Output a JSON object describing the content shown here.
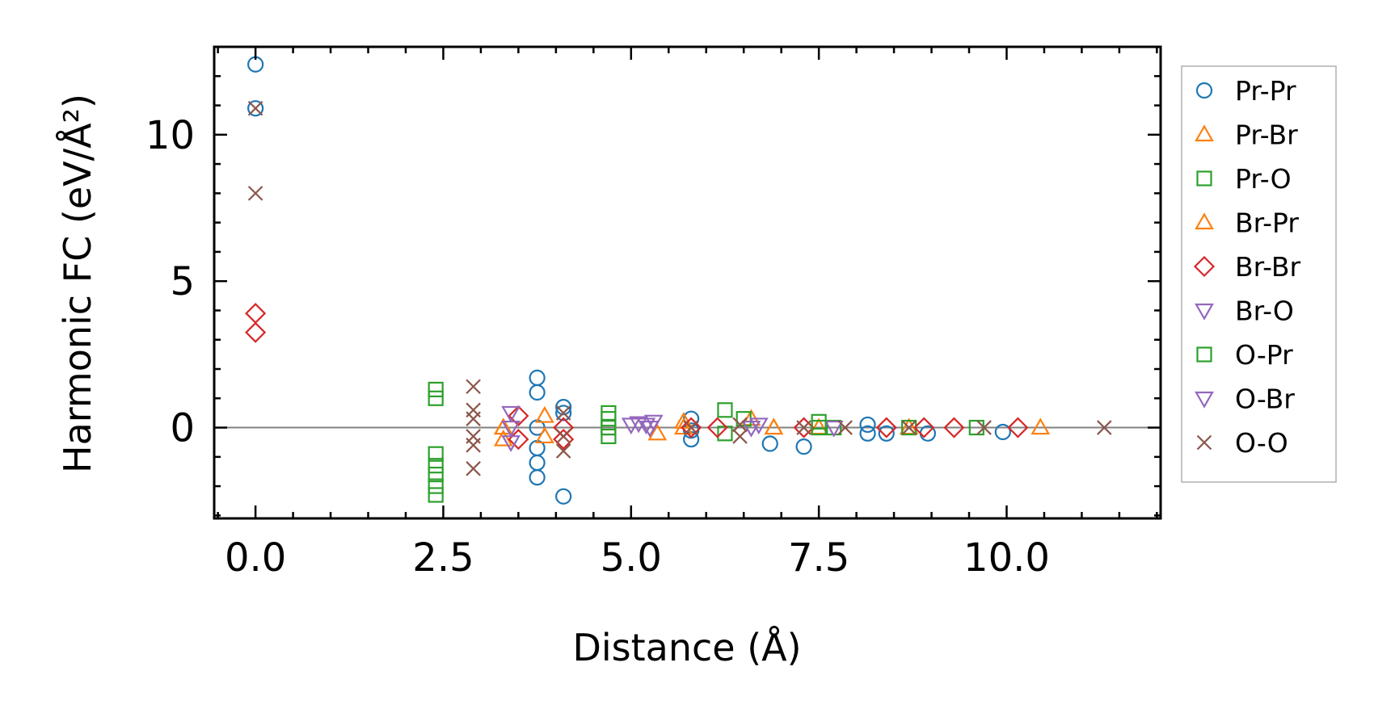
{
  "chart_data": {
    "type": "scatter",
    "xlabel": "Distance (Å)",
    "ylabel": "Harmonic FC (eV/Å²)",
    "xlim": [
      -0.55,
      12.05
    ],
    "ylim": [
      -3.1,
      13.0
    ],
    "x_ticks": [
      0.0,
      2.5,
      5.0,
      7.5,
      10.0
    ],
    "x_tick_labels": [
      "0.0",
      "2.5",
      "5.0",
      "7.5",
      "10.0"
    ],
    "y_ticks": [
      0,
      5,
      10
    ],
    "y_tick_labels": [
      "0",
      "5",
      "10"
    ],
    "grid": false,
    "reference_line_y": 0,
    "legend_position": "outside-right",
    "series": [
      {
        "name": "Pr-Pr",
        "marker": "circle",
        "color": "#1f77b4",
        "points": [
          [
            0.0,
            12.4
          ],
          [
            0.0,
            10.9
          ],
          [
            3.75,
            1.7
          ],
          [
            3.75,
            1.2
          ],
          [
            3.75,
            -0.7
          ],
          [
            3.75,
            -1.2
          ],
          [
            3.75,
            -1.7
          ],
          [
            3.75,
            0.0
          ],
          [
            4.1,
            -2.35
          ],
          [
            4.1,
            0.7
          ],
          [
            4.1,
            0.5
          ],
          [
            5.8,
            0.3
          ],
          [
            5.8,
            -0.1
          ],
          [
            5.8,
            -0.4
          ],
          [
            6.85,
            -0.55
          ],
          [
            7.3,
            -0.65
          ],
          [
            8.15,
            0.1
          ],
          [
            8.15,
            -0.2
          ],
          [
            8.4,
            -0.2
          ],
          [
            8.95,
            -0.2
          ],
          [
            9.95,
            -0.15
          ]
        ]
      },
      {
        "name": "Pr-Br",
        "marker": "triangle-up",
        "color": "#ff7f0e",
        "points": [
          [
            3.3,
            -0.4
          ],
          [
            3.3,
            0.0
          ],
          [
            3.85,
            0.4
          ],
          [
            3.85,
            -0.3
          ],
          [
            5.35,
            -0.2
          ],
          [
            5.7,
            0.2
          ],
          [
            6.6,
            0.3
          ],
          [
            6.9,
            0.0
          ],
          [
            7.5,
            0.0
          ],
          [
            8.7,
            0.0
          ],
          [
            10.45,
            0.0
          ]
        ]
      },
      {
        "name": "Pr-O",
        "marker": "square",
        "color": "#2ca02c",
        "points": [
          [
            2.4,
            1.3
          ],
          [
            2.4,
            1.0
          ],
          [
            2.4,
            -0.9
          ],
          [
            2.4,
            -1.3
          ],
          [
            2.4,
            -1.6
          ],
          [
            2.4,
            -2.0
          ],
          [
            2.4,
            -2.3
          ],
          [
            4.7,
            0.5
          ],
          [
            4.7,
            0.3
          ],
          [
            4.7,
            0.0
          ],
          [
            4.7,
            -0.3
          ],
          [
            6.25,
            0.6
          ],
          [
            6.25,
            -0.2
          ],
          [
            6.5,
            0.3
          ],
          [
            7.5,
            0.2
          ],
          [
            7.7,
            0.0
          ],
          [
            8.7,
            0.0
          ],
          [
            9.6,
            0.0
          ]
        ]
      },
      {
        "name": "Br-Pr",
        "marker": "triangle-up",
        "color": "#ff7f0e",
        "points": [
          [
            3.3,
            0.0
          ],
          [
            5.7,
            0.0
          ],
          [
            6.9,
            0.0
          ]
        ]
      },
      {
        "name": "Br-Br",
        "marker": "diamond",
        "color": "#d62728",
        "points": [
          [
            0.0,
            3.9
          ],
          [
            0.0,
            3.25
          ],
          [
            3.5,
            0.4
          ],
          [
            3.5,
            -0.4
          ],
          [
            4.1,
            0.0
          ],
          [
            4.1,
            -0.4
          ],
          [
            5.8,
            0.0
          ],
          [
            6.15,
            0.0
          ],
          [
            7.3,
            0.0
          ],
          [
            8.4,
            0.0
          ],
          [
            8.9,
            0.0
          ],
          [
            9.3,
            0.0
          ],
          [
            10.15,
            0.0
          ]
        ]
      },
      {
        "name": "Br-O",
        "marker": "triangle-down",
        "color": "#9467bd",
        "points": [
          [
            3.4,
            0.5
          ],
          [
            3.4,
            -0.5
          ],
          [
            5.0,
            0.1
          ],
          [
            5.1,
            0.15
          ],
          [
            5.2,
            0.1
          ],
          [
            5.3,
            0.2
          ],
          [
            6.7,
            0.1
          ],
          [
            7.7,
            0.0
          ]
        ]
      },
      {
        "name": "O-Pr",
        "marker": "square",
        "color": "#2ca02c",
        "points": [
          [
            4.7,
            0.0
          ],
          [
            7.5,
            0.0
          ]
        ]
      },
      {
        "name": "O-Br",
        "marker": "triangle-down",
        "color": "#9467bd",
        "points": [
          [
            3.4,
            0.0
          ],
          [
            5.25,
            0.0
          ],
          [
            6.6,
            0.0
          ]
        ]
      },
      {
        "name": "O-O",
        "marker": "x",
        "color": "#8c564b",
        "points": [
          [
            0.0,
            10.9
          ],
          [
            0.0,
            8.0
          ],
          [
            2.9,
            1.4
          ],
          [
            2.9,
            0.6
          ],
          [
            2.9,
            0.3
          ],
          [
            2.9,
            -0.3
          ],
          [
            2.9,
            -0.6
          ],
          [
            2.9,
            -1.4
          ],
          [
            4.1,
            0.5
          ],
          [
            4.1,
            -0.3
          ],
          [
            4.1,
            -0.8
          ],
          [
            5.8,
            0.0
          ],
          [
            6.45,
            -0.3
          ],
          [
            6.45,
            0.1
          ],
          [
            7.3,
            0.0
          ],
          [
            7.85,
            0.0
          ],
          [
            8.7,
            0.0
          ],
          [
            9.7,
            0.0
          ],
          [
            11.3,
            0.0
          ]
        ]
      }
    ]
  }
}
